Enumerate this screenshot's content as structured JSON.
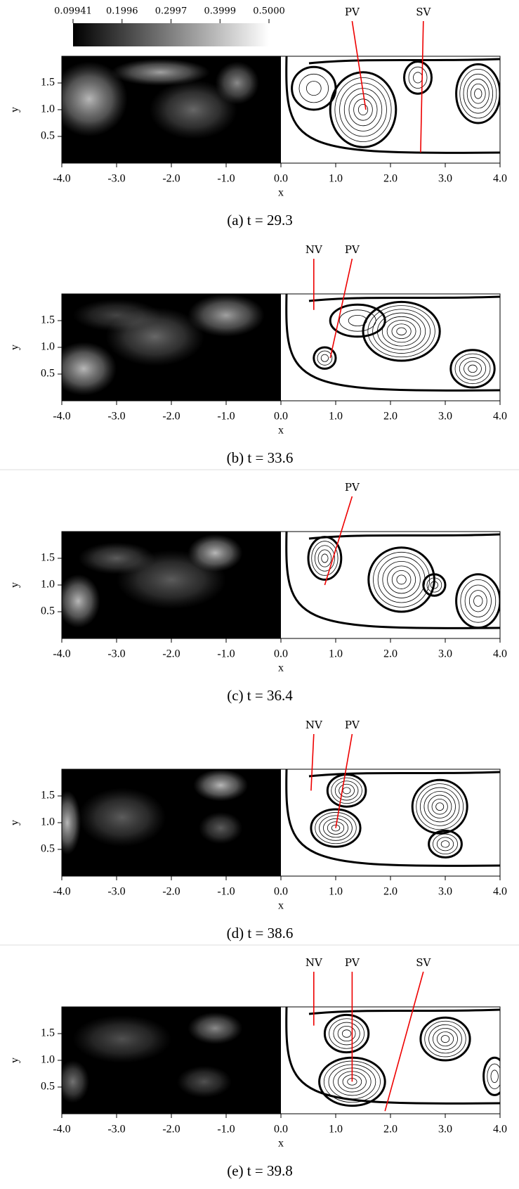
{
  "chart_data": [
    {
      "type": "field",
      "xlabel": "x",
      "ylabel": "y",
      "xlim": [
        -4,
        4
      ],
      "ylim": [
        0,
        2
      ],
      "xticks": [
        {
          "value": -4,
          "label": "-4.0"
        },
        {
          "value": -3,
          "label": "-3.0"
        },
        {
          "value": -2,
          "label": "-2.0"
        },
        {
          "value": -1,
          "label": "-1.0"
        },
        {
          "value": 0,
          "label": "0.0"
        },
        {
          "value": 1,
          "label": "1.0"
        },
        {
          "value": 2,
          "label": "2.0"
        },
        {
          "value": 3,
          "label": "3.0"
        },
        {
          "value": 4,
          "label": "4.0"
        }
      ],
      "yticks": [
        0.5,
        {
          "value": 1,
          "label": "1.0"
        },
        1.5
      ],
      "colorbar": {
        "lim": [
          0.09941,
          0.5
        ],
        "ticks": [
          0.09941,
          0.1996,
          0.2997,
          0.3999,
          {
            "value": 0.5,
            "label": "0.5000"
          }
        ]
      },
      "annotations": [
        "PV",
        "SV"
      ],
      "caption": "(a) t = 29.3"
    },
    {
      "type": "field",
      "xlabel": "x",
      "ylabel": "y",
      "xlim": [
        -4,
        4
      ],
      "ylim": [
        0,
        2
      ],
      "xticks": [
        {
          "value": -4,
          "label": "-4.0"
        },
        {
          "value": -3,
          "label": "-3.0"
        },
        {
          "value": -2,
          "label": "-2.0"
        },
        {
          "value": -1,
          "label": "-1.0"
        },
        {
          "value": 0,
          "label": "0.0"
        },
        {
          "value": 1,
          "label": "1.0"
        },
        {
          "value": 2,
          "label": "2.0"
        },
        {
          "value": 3,
          "label": "3.0"
        },
        {
          "value": 4,
          "label": "4.0"
        }
      ],
      "yticks": [
        0.5,
        {
          "value": 1,
          "label": "1.0"
        },
        1.5
      ],
      "annotations": [
        "NV",
        "PV"
      ],
      "caption": "(b) t = 33.6"
    },
    {
      "type": "field",
      "xlabel": "x",
      "ylabel": "y",
      "xlim": [
        -4,
        4
      ],
      "ylim": [
        0,
        2
      ],
      "xticks": [
        {
          "value": -4,
          "label": "-4.0"
        },
        {
          "value": -3,
          "label": "-3.0"
        },
        {
          "value": -2,
          "label": "-2.0"
        },
        {
          "value": -1,
          "label": "-1.0"
        },
        {
          "value": 0,
          "label": "0.0"
        },
        {
          "value": 1,
          "label": "1.0"
        },
        {
          "value": 2,
          "label": "2.0"
        },
        {
          "value": 3,
          "label": "3.0"
        },
        {
          "value": 4,
          "label": "4.0"
        }
      ],
      "yticks": [
        0.5,
        {
          "value": 1,
          "label": "1.0"
        },
        1.5
      ],
      "annotations": [
        "PV"
      ],
      "caption": "(c) t = 36.4"
    },
    {
      "type": "field",
      "xlabel": "x",
      "ylabel": "y",
      "xlim": [
        -4,
        4
      ],
      "ylim": [
        0,
        2
      ],
      "xticks": [
        {
          "value": -4,
          "label": "-4.0"
        },
        {
          "value": -3,
          "label": "-3.0"
        },
        {
          "value": -2,
          "label": "-2.0"
        },
        {
          "value": -1,
          "label": "-1.0"
        },
        {
          "value": 0,
          "label": "0.0"
        },
        {
          "value": 1,
          "label": "1.0"
        },
        {
          "value": 2,
          "label": "2.0"
        },
        {
          "value": 3,
          "label": "3.0"
        },
        {
          "value": 4,
          "label": "4.0"
        }
      ],
      "yticks": [
        0.5,
        {
          "value": 1,
          "label": "1.0"
        },
        1.5
      ],
      "annotations": [
        "NV",
        "PV"
      ],
      "caption": "(d) t = 38.6"
    },
    {
      "type": "field",
      "xlabel": "x",
      "ylabel": "y",
      "xlim": [
        -4,
        4
      ],
      "ylim": [
        0,
        2
      ],
      "xticks": [
        {
          "value": -4,
          "label": "-4.0"
        },
        {
          "value": -3,
          "label": "-3.0"
        },
        {
          "value": -2,
          "label": "-2.0"
        },
        {
          "value": -1,
          "label": "-1.0"
        },
        {
          "value": 0,
          "label": "0.0"
        },
        {
          "value": 1,
          "label": "1.0"
        },
        {
          "value": 2,
          "label": "2.0"
        },
        {
          "value": 3,
          "label": "3.0"
        },
        {
          "value": 4,
          "label": "4.0"
        }
      ],
      "yticks": [
        0.5,
        {
          "value": 1,
          "label": "1.0"
        },
        1.5
      ],
      "annotations": [
        "NV",
        "PV",
        "SV"
      ],
      "caption": "(e) t = 39.8"
    }
  ]
}
